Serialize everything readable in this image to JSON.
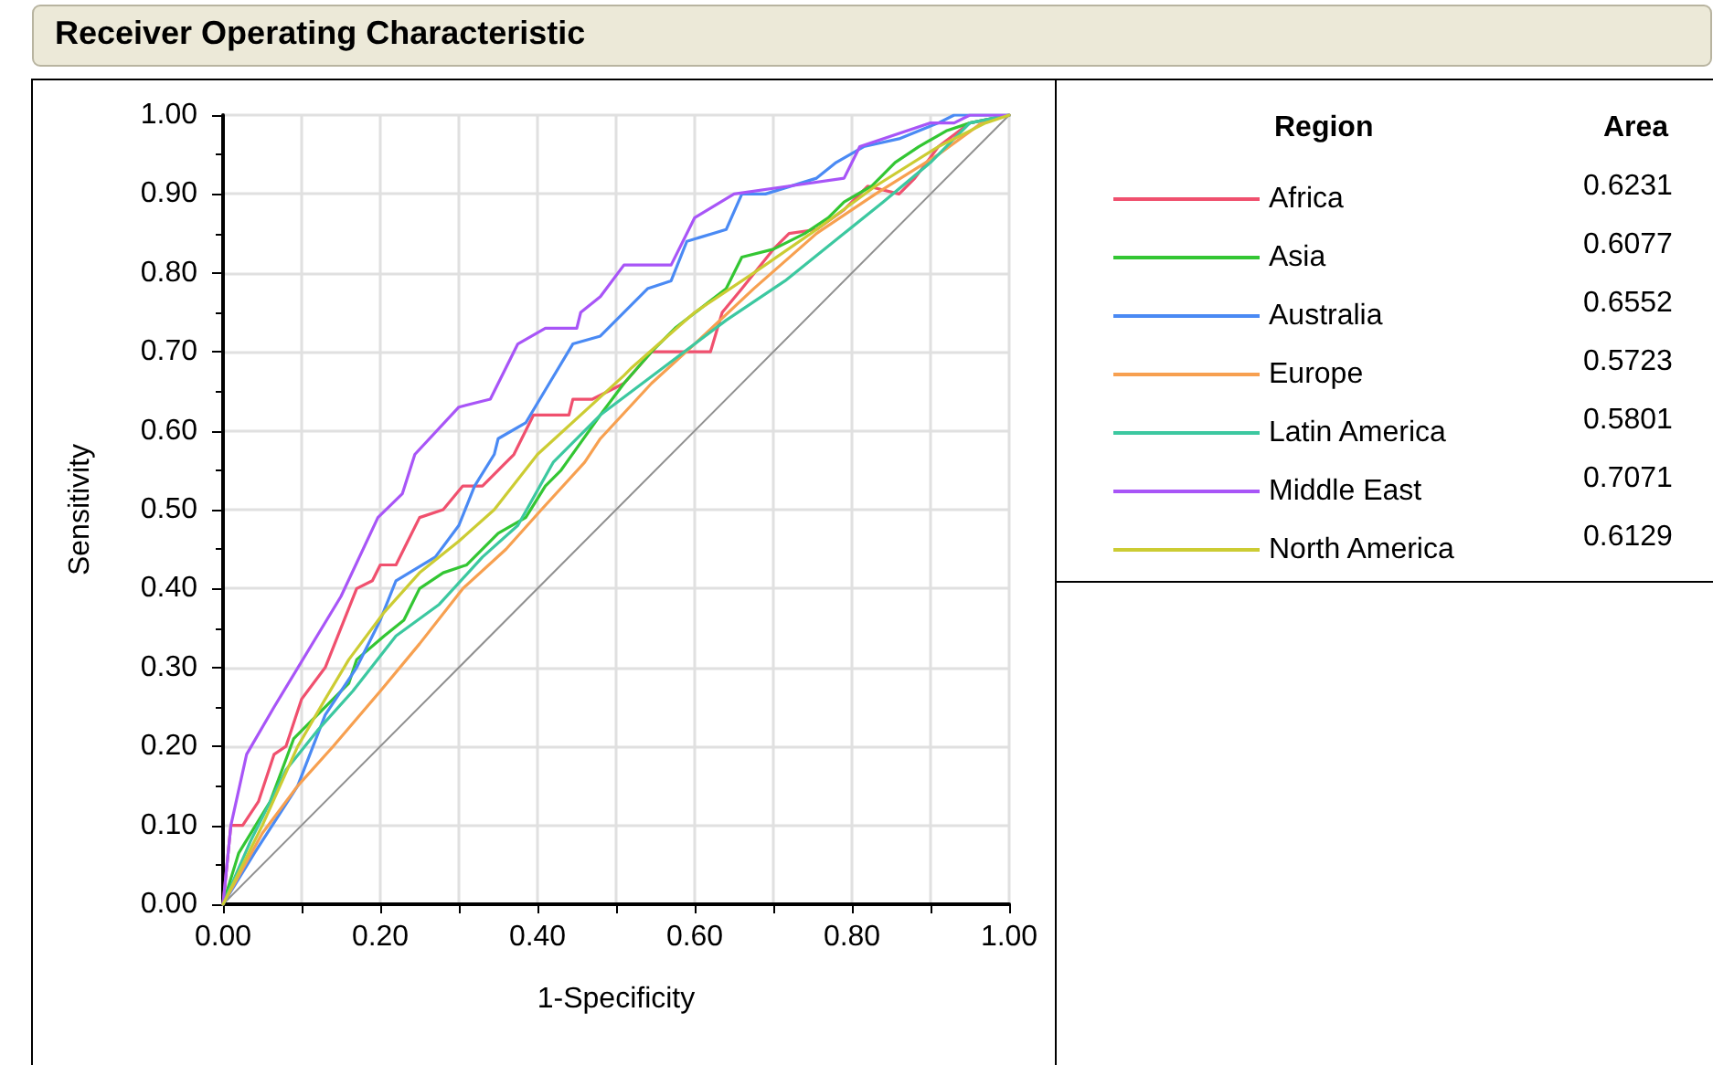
{
  "chart_data": {
    "type": "line",
    "title": "Receiver Operating Characteristic",
    "xlabel": "1-Specificity",
    "ylabel": "Sensitivity",
    "legend_title": "Region",
    "annotations": [
      "Area",
      "0.6231",
      "0.6077",
      "0.6552",
      "0.5723",
      "0.5801",
      "0.7071",
      "0.6129"
    ],
    "xlim": [
      0,
      1
    ],
    "ylim": [
      0,
      1
    ],
    "xticks": [
      {
        "value": 0,
        "label": "0.00"
      },
      {
        "value": 0.1,
        "label": null
      },
      {
        "value": 0.2,
        "label": "0.20"
      },
      {
        "value": 0.3,
        "label": null
      },
      {
        "value": 0.4,
        "label": "0.40"
      },
      {
        "value": 0.5,
        "label": null
      },
      {
        "value": 0.6,
        "label": "0.60"
      },
      {
        "value": 0.7,
        "label": null
      },
      {
        "value": 0.8,
        "label": "0.80"
      },
      {
        "value": 0.9,
        "label": null
      },
      {
        "value": 1,
        "label": "1.00"
      }
    ],
    "yticks": [
      {
        "value": 0,
        "label": "0.00"
      },
      {
        "value": 0.05,
        "label": null
      },
      {
        "value": 0.1,
        "label": "0.10"
      },
      {
        "value": 0.15,
        "label": null
      },
      {
        "value": 0.2,
        "label": "0.20"
      },
      {
        "value": 0.25,
        "label": null
      },
      {
        "value": 0.3,
        "label": "0.30"
      },
      {
        "value": 0.35,
        "label": null
      },
      {
        "value": 0.4,
        "label": "0.40"
      },
      {
        "value": 0.45,
        "label": null
      },
      {
        "value": 0.5,
        "label": "0.50"
      },
      {
        "value": 0.55,
        "label": null
      },
      {
        "value": 0.6,
        "label": "0.60"
      },
      {
        "value": 0.65,
        "label": null
      },
      {
        "value": 0.7,
        "label": "0.70"
      },
      {
        "value": 0.75,
        "label": null
      },
      {
        "value": 0.8,
        "label": "0.80"
      },
      {
        "value": 0.85,
        "label": null
      },
      {
        "value": 0.9,
        "label": "0.90"
      },
      {
        "value": 0.95,
        "label": null
      },
      {
        "value": 1,
        "label": "1.00"
      }
    ],
    "grid": true,
    "legend": "right",
    "marker": "none",
    "line_style": "solid",
    "series": [
      {
        "name": "Africa",
        "color": "#f0506e",
        "x": [
          0,
          0.01,
          0.025,
          0.045,
          0.065,
          0.08,
          0.1,
          0.13,
          0.15,
          0.17,
          0.19,
          0.2,
          0.22,
          0.235,
          0.25,
          0.28,
          0.305,
          0.33,
          0.35,
          0.37,
          0.395,
          0.44,
          0.445,
          0.47,
          0.51,
          0.545,
          0.6,
          0.62,
          0.635,
          0.66,
          0.7,
          0.72,
          0.755,
          0.79,
          0.82,
          0.86,
          0.88,
          0.91,
          0.95,
          1
        ],
        "values": [
          0,
          0.1,
          0.1,
          0.13,
          0.19,
          0.2,
          0.26,
          0.3,
          0.35,
          0.4,
          0.41,
          0.43,
          0.43,
          0.46,
          0.49,
          0.5,
          0.53,
          0.53,
          0.55,
          0.57,
          0.62,
          0.62,
          0.64,
          0.64,
          0.66,
          0.7,
          0.7,
          0.7,
          0.75,
          0.78,
          0.83,
          0.85,
          0.855,
          0.88,
          0.91,
          0.9,
          0.92,
          0.96,
          0.99,
          1
        ]
      },
      {
        "name": "Asia",
        "color": "#33c633",
        "x": [
          0,
          0.02,
          0.06,
          0.09,
          0.12,
          0.14,
          0.16,
          0.17,
          0.205,
          0.23,
          0.25,
          0.28,
          0.31,
          0.33,
          0.35,
          0.385,
          0.41,
          0.43,
          0.48,
          0.51,
          0.545,
          0.575,
          0.64,
          0.66,
          0.7,
          0.74,
          0.77,
          0.79,
          0.825,
          0.855,
          0.885,
          0.92,
          0.95,
          1
        ],
        "values": [
          0,
          0.065,
          0.13,
          0.21,
          0.24,
          0.26,
          0.28,
          0.31,
          0.34,
          0.36,
          0.4,
          0.42,
          0.43,
          0.45,
          0.47,
          0.49,
          0.53,
          0.55,
          0.62,
          0.66,
          0.7,
          0.73,
          0.78,
          0.82,
          0.83,
          0.85,
          0.87,
          0.89,
          0.91,
          0.94,
          0.96,
          0.98,
          0.99,
          1
        ]
      },
      {
        "name": "Australia",
        "color": "#4a8af4",
        "x": [
          0,
          0.04,
          0.095,
          0.13,
          0.17,
          0.2,
          0.22,
          0.27,
          0.3,
          0.32,
          0.345,
          0.35,
          0.385,
          0.415,
          0.445,
          0.48,
          0.54,
          0.57,
          0.59,
          0.64,
          0.66,
          0.69,
          0.755,
          0.78,
          0.815,
          0.86,
          0.91,
          0.93,
          1
        ],
        "values": [
          0,
          0.065,
          0.15,
          0.24,
          0.3,
          0.36,
          0.41,
          0.44,
          0.48,
          0.53,
          0.57,
          0.59,
          0.61,
          0.66,
          0.71,
          0.72,
          0.78,
          0.79,
          0.84,
          0.855,
          0.9,
          0.9,
          0.92,
          0.94,
          0.96,
          0.97,
          0.99,
          1,
          1
        ]
      },
      {
        "name": "Europe",
        "color": "#f7a050",
        "x": [
          0,
          0.05,
          0.095,
          0.14,
          0.2,
          0.25,
          0.305,
          0.36,
          0.405,
          0.46,
          0.48,
          0.545,
          0.6,
          0.675,
          0.755,
          0.83,
          0.91,
          0.965,
          1
        ],
        "values": [
          0,
          0.09,
          0.15,
          0.2,
          0.27,
          0.33,
          0.4,
          0.45,
          0.5,
          0.56,
          0.59,
          0.66,
          0.71,
          0.78,
          0.85,
          0.9,
          0.95,
          0.99,
          1
        ]
      },
      {
        "name": "Latin America",
        "color": "#3cc8a0",
        "x": [
          0,
          0.035,
          0.08,
          0.12,
          0.165,
          0.22,
          0.275,
          0.33,
          0.375,
          0.42,
          0.48,
          0.56,
          0.64,
          0.715,
          0.79,
          0.84,
          0.9,
          0.95,
          1
        ],
        "values": [
          0,
          0.08,
          0.17,
          0.22,
          0.27,
          0.34,
          0.38,
          0.44,
          0.48,
          0.56,
          0.62,
          0.68,
          0.74,
          0.79,
          0.85,
          0.89,
          0.94,
          0.99,
          1
        ]
      },
      {
        "name": "Middle East",
        "color": "#a855f7",
        "x": [
          0,
          0.01,
          0.03,
          0.065,
          0.15,
          0.197,
          0.228,
          0.244,
          0.3,
          0.34,
          0.375,
          0.41,
          0.45,
          0.455,
          0.48,
          0.51,
          0.57,
          0.6,
          0.65,
          0.72,
          0.79,
          0.81,
          0.9,
          0.93,
          0.95,
          1
        ],
        "values": [
          0,
          0.1,
          0.19,
          0.25,
          0.39,
          0.49,
          0.52,
          0.57,
          0.63,
          0.64,
          0.71,
          0.73,
          0.73,
          0.75,
          0.77,
          0.81,
          0.81,
          0.87,
          0.9,
          0.91,
          0.92,
          0.96,
          0.99,
          0.99,
          1,
          1
        ]
      },
      {
        "name": "North America",
        "color": "#cccc33",
        "x": [
          0,
          0.05,
          0.095,
          0.13,
          0.16,
          0.205,
          0.25,
          0.3,
          0.345,
          0.4,
          0.51,
          0.52,
          0.6,
          0.675,
          0.755,
          0.83,
          0.91,
          0.97,
          1
        ],
        "values": [
          0,
          0.1,
          0.2,
          0.26,
          0.31,
          0.37,
          0.42,
          0.46,
          0.5,
          0.57,
          0.67,
          0.68,
          0.75,
          0.8,
          0.855,
          0.91,
          0.96,
          0.99,
          1
        ]
      },
      {
        "color": "#909090",
        "x": [
          0,
          1
        ],
        "values": [
          0,
          1
        ]
      }
    ]
  }
}
